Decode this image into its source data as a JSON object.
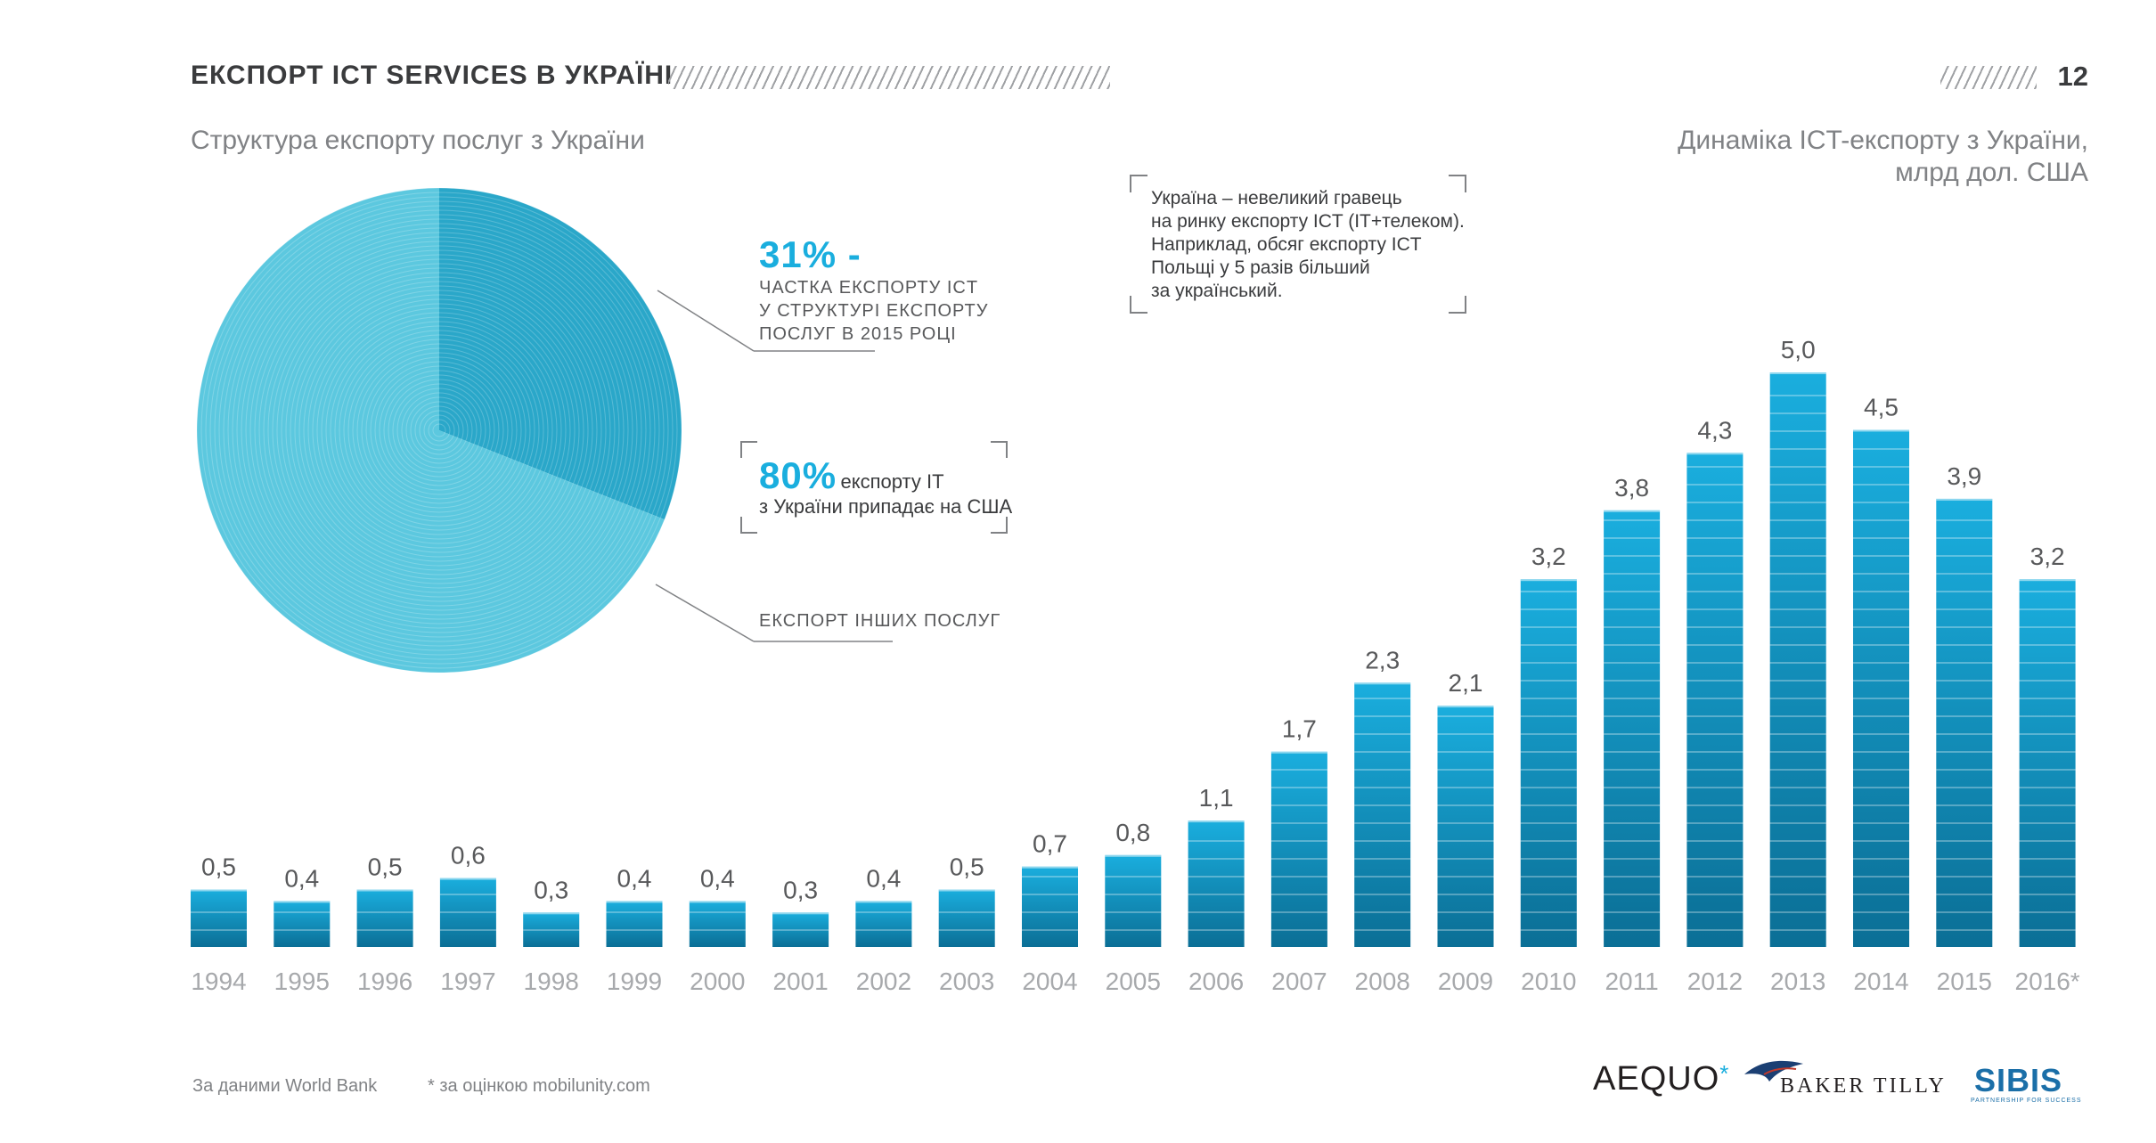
{
  "header": {
    "title": "ЕКСПОРТ ICT SERVICES В УКРАЇНІ",
    "page_number": "12"
  },
  "left_subtitle": "Структура експорту послуг з України",
  "right_subtitle": [
    "Динаміка ICT-експорту з України,",
    "млрд дол. США"
  ],
  "note": [
    "Україна – невеликий гравець",
    "на ринку експорту ICT (IT+телеком).",
    "Наприклад, обсяг експорту ICT",
    "Польщі у 5 разів більший",
    "за український."
  ],
  "callout_ict": {
    "value": "31% -",
    "lines": [
      "ЧАСТКА ЕКСПОРТУ ICT",
      "У СТРУКТУРІ ЕКСПОРТУ",
      "ПОСЛУГ В 2015 РОЦІ"
    ]
  },
  "callout_usa": {
    "value": "80%",
    "line1": "експорту IT",
    "line2": "з України припадає на США"
  },
  "other_label": "ЕКСПОРТ ІНШИХ ПОСЛУГ",
  "footer": {
    "source": "За даними World Bank",
    "estimate_note": "* за оцінкою mobilunity.com"
  },
  "logos": {
    "aequo": "AEQUO",
    "aequo_star": "*",
    "baker_tilly": "BAKER TILLY",
    "sibis": "SIBIS",
    "sibis_tag": "PARTNERSHIP FOR SUCCESS"
  },
  "colors": {
    "accent": "#1aaede",
    "bar_top": "#1aaede",
    "bar_bottom": "#0b6f96",
    "pie_main": "#5cc8df",
    "pie_slice": "#2aa7c9"
  },
  "chart_data": [
    {
      "type": "pie",
      "title": "Структура експорту послуг з України",
      "slices": [
        {
          "label": "ICT",
          "value": 31
        },
        {
          "label": "ЕКСПОРТ ІНШИХ ПОСЛУГ",
          "value": 69
        }
      ]
    },
    {
      "type": "bar",
      "title": "Динаміка ICT-експорту з України, млрд дол. США",
      "categories": [
        "1994",
        "1995",
        "1996",
        "1997",
        "1998",
        "1999",
        "2000",
        "2001",
        "2002",
        "2003",
        "2004",
        "2005",
        "2006",
        "2007",
        "2008",
        "2009",
        "2010",
        "2011",
        "2012",
        "2013",
        "2014",
        "2015",
        "2016*"
      ],
      "values": [
        0.5,
        0.4,
        0.5,
        0.6,
        0.3,
        0.4,
        0.4,
        0.3,
        0.4,
        0.5,
        0.7,
        0.8,
        1.1,
        1.7,
        2.3,
        2.1,
        3.2,
        3.8,
        4.3,
        5.0,
        4.5,
        3.9,
        3.2
      ],
      "value_labels": [
        "0,5",
        "0,4",
        "0,5",
        "0,6",
        "0,3",
        "0,4",
        "0,4",
        "0,3",
        "0,4",
        "0,5",
        "0,7",
        "0,8",
        "1,1",
        "1,7",
        "2,3",
        "2,1",
        "3,2",
        "3,8",
        "4,3",
        "5,0",
        "4,5",
        "3,9",
        "3,2"
      ],
      "ylim": [
        0,
        5.0
      ]
    }
  ]
}
